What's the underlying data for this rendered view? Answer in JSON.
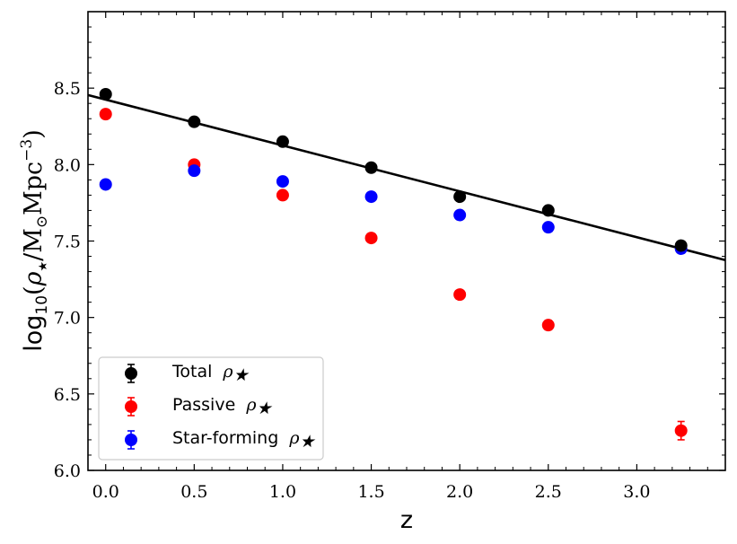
{
  "chart_data": {
    "type": "scatter",
    "title": "",
    "xlabel": "z",
    "ylabel": {
      "prefix": "log",
      "sub": "10",
      "open": "(",
      "rho": "ρ",
      "star": "★",
      "slash": "/M",
      "odot": "⊙",
      "mpc": "Mpc",
      "exp": "−3",
      "close": ")"
    },
    "xlim": [
      -0.1,
      3.5
    ],
    "ylim": [
      6.0,
      9.0
    ],
    "xticks": [
      0.0,
      0.5,
      1.0,
      1.5,
      2.0,
      2.5,
      3.0
    ],
    "xtick_labels": [
      "0.0",
      "0.5",
      "1.0",
      "1.5",
      "2.0",
      "2.5",
      "3.0"
    ],
    "yticks": [
      6.0,
      6.5,
      7.0,
      7.5,
      8.0,
      8.5
    ],
    "ytick_labels": [
      "6.0",
      "6.5",
      "7.0",
      "7.5",
      "8.0",
      "8.5"
    ],
    "legend_position": "lower-left",
    "series": [
      {
        "name": "Total",
        "legend_text": "Total",
        "color": "#000000",
        "x": [
          0.0,
          0.5,
          1.0,
          1.5,
          2.0,
          2.5,
          3.25
        ],
        "y": [
          8.46,
          8.28,
          8.15,
          7.98,
          7.79,
          7.7,
          7.47
        ],
        "yerr": [
          0.01,
          0.01,
          0.01,
          0.01,
          0.01,
          0.01,
          0.02
        ]
      },
      {
        "name": "Passive",
        "legend_text": "Passive",
        "color": "#ff0000",
        "x": [
          0.0,
          0.5,
          1.0,
          1.5,
          2.0,
          2.5,
          3.25
        ],
        "y": [
          8.33,
          8.0,
          7.8,
          7.52,
          7.15,
          6.95,
          6.26
        ],
        "yerr": [
          0.01,
          0.01,
          0.01,
          0.01,
          0.01,
          0.03,
          0.06
        ]
      },
      {
        "name": "Star-forming",
        "legend_text": "Star-forming",
        "color": "#0000ff",
        "x": [
          0.0,
          0.5,
          1.0,
          1.5,
          2.0,
          2.5,
          3.25
        ],
        "y": [
          7.87,
          7.96,
          7.89,
          7.79,
          7.67,
          7.59,
          7.45
        ],
        "yerr": [
          0.01,
          0.01,
          0.01,
          0.01,
          0.01,
          0.01,
          0.01
        ]
      }
    ],
    "fit_line": {
      "color": "#000000",
      "x": [
        -0.1,
        3.5
      ],
      "y": [
        8.455,
        7.375
      ]
    }
  }
}
